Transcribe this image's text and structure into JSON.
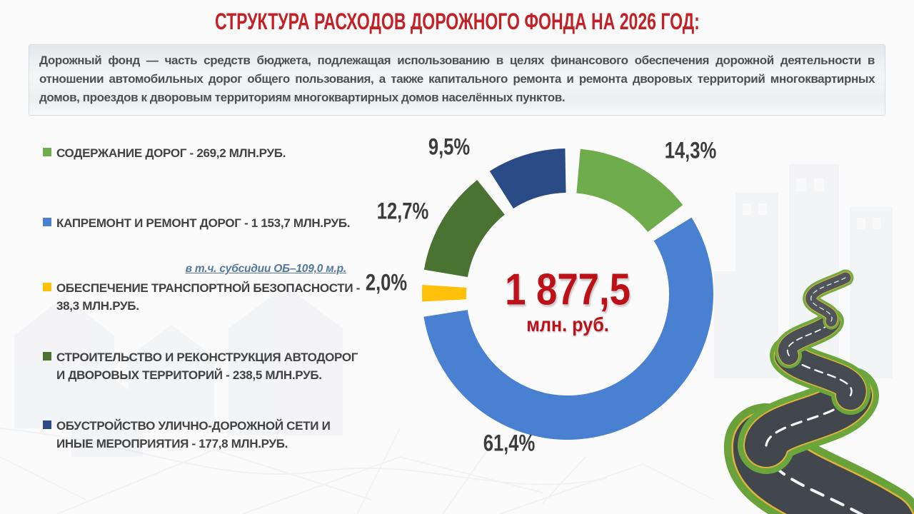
{
  "title": "СТРУКТУРА РАСХОДОВ ДОРОЖНОГО ФОНДА НА 2026 ГОД:",
  "description": "Дорожный фонд — часть средств бюджета, подлежащая использованию в целях финансового обеспечения дорожной деятельности в отношении автомобильных дорог общего пользования, а также капитального ремонта и ремонта дворовых территорий многоквартирных домов, проездов к дворовым территориям многоквартирных домов населённых пунктов.",
  "subsidy_note": "в т.ч. субсидии ОБ–109,0 м.р.",
  "legend": {
    "items": [
      {
        "text": "СОДЕРЖАНИЕ ДОРОГ - 269,2 МЛН.РУБ.",
        "color": "#6fac4b"
      },
      {
        "text": "КАПРЕМОНТ И РЕМОНТ ДОРОГ - 1 153,7 МЛН.РУБ.",
        "color": "#4a80d1"
      },
      {
        "text": "ОБЕСПЕЧЕНИЕ ТРАНСПОРТНОЙ БЕЗОПАСНОСТИ -\n38,3 МЛН.РУБ.",
        "color": "#ffc10a"
      },
      {
        "text": "СТРОИТЕЛЬСТВО И РЕКОНСТРУКЦИЯ АВТОДОРОГ\nИ ДВОРОВЫХ ТЕРРИТОРИЙ - 238,5 МЛН.РУБ.",
        "color": "#4a7231"
      },
      {
        "text": "ОБУСТРОЙСТВО УЛИЧНО-ДОРОЖНОЙ СЕТИ И\nИНЫЕ МЕРОПРИЯТИЯ - 177,8 МЛН.РУБ.",
        "color": "#2a4b85"
      }
    ]
  },
  "chart_data": {
    "type": "pie",
    "subtype": "donut",
    "title": "СТРУКТУРА РАСХОДОВ ДОРОЖНОГО ФОНДА НА 2026 ГОД:",
    "categories": [
      "СОДЕРЖАНИЕ ДОРОГ",
      "КАПРЕМОНТ И РЕМОНТ ДОРОГ",
      "ОБЕСПЕЧЕНИЕ ТРАНСПОРТНОЙ БЕЗОПАСНОСТИ",
      "СТРОИТЕЛЬСТВО И РЕКОНСТРУКЦИЯ АВТОДОРОГ И ДВОРОВЫХ ТЕРРИТОРИЙ",
      "ОБУСТРОЙСТВО УЛИЧНО-ДОРОЖНОЙ СЕТИ И ИНЫЕ МЕРОПРИЯТИЯ"
    ],
    "values_mln_rub": [
      269.2,
      1153.7,
      38.3,
      238.5,
      177.8
    ],
    "percents": [
      14.3,
      61.4,
      2.0,
      12.7,
      9.5
    ],
    "percent_labels": [
      "14,3%",
      "61,4%",
      "2,0%",
      "12,7%",
      "9,5%"
    ],
    "colors": [
      "#6fac4b",
      "#4a80d1",
      "#ffc10a",
      "#4a7231",
      "#2a4b85"
    ],
    "center_value": "1 877,5",
    "center_unit": "млн. руб.",
    "legend_position": "left"
  }
}
